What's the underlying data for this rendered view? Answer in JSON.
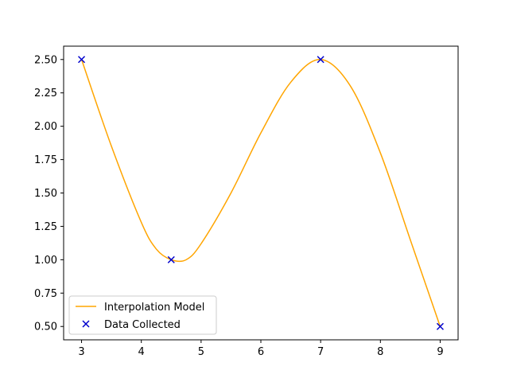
{
  "chart_data": {
    "type": "line",
    "title": "",
    "xlabel": "",
    "ylabel": "",
    "xlim": [
      2.7,
      9.3
    ],
    "ylim": [
      0.4,
      2.6
    ],
    "xticks": [
      3,
      4,
      5,
      6,
      7,
      8,
      9
    ],
    "yticks": [
      0.5,
      0.75,
      1.0,
      1.25,
      1.5,
      1.75,
      2.0,
      2.25,
      2.5
    ],
    "xtick_labels": [
      "3",
      "4",
      "5",
      "6",
      "7",
      "8",
      "9"
    ],
    "ytick_labels": [
      "0.50",
      "0.75",
      "1.00",
      "1.25",
      "1.50",
      "1.75",
      "2.00",
      "2.25",
      "2.50"
    ],
    "grid": false,
    "legend_position": "lower-left",
    "series": [
      {
        "name": "Interpolation Model",
        "kind": "line",
        "color": "#ffa500",
        "x": [
          3.0,
          3.5,
          4.0,
          4.25,
          4.5,
          4.75,
          5.0,
          5.5,
          6.0,
          6.5,
          7.0,
          7.5,
          8.0,
          8.5,
          9.0
        ],
        "y": [
          2.5,
          1.85,
          1.28,
          1.08,
          1.0,
          1.0,
          1.12,
          1.5,
          1.95,
          2.33,
          2.5,
          2.3,
          1.8,
          1.15,
          0.5
        ]
      },
      {
        "name": "Data Collected",
        "kind": "scatter",
        "marker": "x",
        "color": "#0000cd",
        "x": [
          3.0,
          4.5,
          7.0,
          9.0
        ],
        "y": [
          2.5,
          1.0,
          2.5,
          0.5
        ]
      }
    ]
  }
}
